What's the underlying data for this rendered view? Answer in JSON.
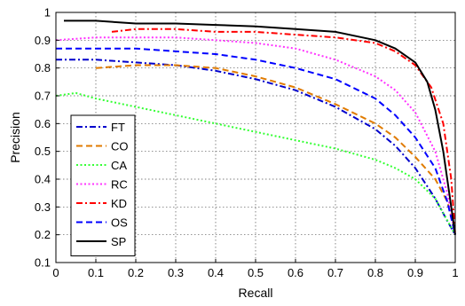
{
  "chart_data": {
    "type": "line",
    "title": "",
    "xlabel": "Recall",
    "ylabel": "Precision",
    "xlim": [
      0,
      1
    ],
    "ylim": [
      0.1,
      1
    ],
    "xticks": [
      "0",
      "0.1",
      "0.2",
      "0.3",
      "0.4",
      "0.5",
      "0.6",
      "0.7",
      "0.8",
      "0.9",
      "1"
    ],
    "yticks": [
      "0.1",
      "0.2",
      "0.3",
      "0.4",
      "0.5",
      "0.6",
      "0.7",
      "0.8",
      "0.9",
      "1"
    ],
    "grid": true,
    "legend_position": "bottom-left",
    "series": [
      {
        "name": "FT",
        "color": "#0000cc",
        "dash": "dash-dot",
        "x": [
          0,
          0.1,
          0.2,
          0.3,
          0.4,
          0.5,
          0.6,
          0.7,
          0.8,
          0.85,
          0.9,
          0.95,
          0.98,
          1
        ],
        "y": [
          0.83,
          0.83,
          0.82,
          0.81,
          0.79,
          0.76,
          0.72,
          0.66,
          0.58,
          0.52,
          0.44,
          0.33,
          0.25,
          0.2
        ]
      },
      {
        "name": "CO",
        "color": "#e07b00",
        "dash": "dashed",
        "x": [
          0.1,
          0.2,
          0.3,
          0.4,
          0.5,
          0.6,
          0.7,
          0.8,
          0.85,
          0.9,
          0.95,
          0.98,
          1
        ],
        "y": [
          0.8,
          0.81,
          0.81,
          0.8,
          0.77,
          0.73,
          0.67,
          0.6,
          0.55,
          0.48,
          0.4,
          0.32,
          0.21
        ]
      },
      {
        "name": "CA",
        "color": "#33ff33",
        "dash": "dotted",
        "x": [
          0,
          0.05,
          0.1,
          0.2,
          0.3,
          0.4,
          0.5,
          0.6,
          0.7,
          0.8,
          0.85,
          0.9,
          0.95,
          1
        ],
        "y": [
          0.7,
          0.71,
          0.69,
          0.66,
          0.63,
          0.6,
          0.57,
          0.54,
          0.51,
          0.47,
          0.44,
          0.4,
          0.33,
          0.2
        ]
      },
      {
        "name": "RC",
        "color": "#ff33ff",
        "dash": "dotted",
        "x": [
          0,
          0.1,
          0.2,
          0.3,
          0.4,
          0.5,
          0.6,
          0.7,
          0.8,
          0.85,
          0.9,
          0.95,
          0.98,
          1
        ],
        "y": [
          0.9,
          0.91,
          0.91,
          0.91,
          0.9,
          0.89,
          0.87,
          0.83,
          0.77,
          0.72,
          0.64,
          0.5,
          0.35,
          0.2
        ]
      },
      {
        "name": "KD",
        "color": "#ff0000",
        "dash": "dash-dot",
        "x": [
          0.14,
          0.2,
          0.3,
          0.4,
          0.5,
          0.6,
          0.7,
          0.8,
          0.85,
          0.9,
          0.94,
          0.97,
          0.99,
          1
        ],
        "y": [
          0.93,
          0.94,
          0.94,
          0.93,
          0.93,
          0.92,
          0.91,
          0.89,
          0.86,
          0.81,
          0.73,
          0.6,
          0.4,
          0.2
        ]
      },
      {
        "name": "OS",
        "color": "#0000ff",
        "dash": "dashed",
        "x": [
          0,
          0.1,
          0.2,
          0.3,
          0.4,
          0.5,
          0.6,
          0.7,
          0.8,
          0.85,
          0.9,
          0.95,
          0.98,
          1
        ],
        "y": [
          0.87,
          0.87,
          0.87,
          0.86,
          0.85,
          0.83,
          0.8,
          0.76,
          0.69,
          0.63,
          0.55,
          0.44,
          0.32,
          0.2
        ]
      },
      {
        "name": "SP",
        "color": "#000000",
        "dash": "solid",
        "x": [
          0.02,
          0.1,
          0.2,
          0.3,
          0.4,
          0.5,
          0.6,
          0.7,
          0.8,
          0.85,
          0.9,
          0.93,
          0.95,
          0.97,
          0.99,
          1
        ],
        "y": [
          0.97,
          0.97,
          0.96,
          0.96,
          0.955,
          0.95,
          0.94,
          0.93,
          0.9,
          0.87,
          0.82,
          0.75,
          0.65,
          0.5,
          0.3,
          0.2
        ]
      }
    ]
  }
}
